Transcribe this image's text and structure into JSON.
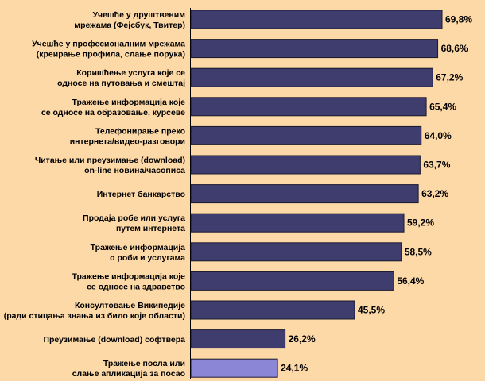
{
  "chart_data": {
    "type": "bar",
    "orientation": "horizontal",
    "title": "",
    "xlabel": "",
    "ylabel": "",
    "xlim": [
      0,
      100
    ],
    "grid": false,
    "legend": "none",
    "categories": [
      [
        "Учешће у друштвеним",
        "мрежама (Фејсбук, Твитер)"
      ],
      [
        "Учешће у професионалним мрежама",
        "(креирање профила, слање порука)"
      ],
      [
        "Коришћење услуга које се",
        "односе на путовања и смештај"
      ],
      [
        "Тражење информација које",
        "се односе на образовање, курсеве"
      ],
      [
        "Телефонирање преко",
        "интернета/видео-разговори"
      ],
      [
        "Читање или преузимање (download)",
        "on-line новина/часописа"
      ],
      [
        "Интернет банкарство"
      ],
      [
        "Продаја робе или услуга",
        "путем интернета"
      ],
      [
        "Тражење информација",
        "о роби и услугама"
      ],
      [
        "Тражење информација које",
        "се односе на здравство"
      ],
      [
        "Консултовање Википедије",
        "(ради стицања знања из било које области)"
      ],
      [
        "Преузимање (download) софтвера"
      ],
      [
        "Тражење посла или",
        "слање апликација за посао"
      ]
    ],
    "values": [
      69.8,
      68.6,
      67.2,
      65.4,
      64.0,
      63.7,
      63.2,
      59.2,
      58.5,
      56.4,
      45.5,
      26.2,
      24.1
    ],
    "value_labels": [
      "69,8%",
      "68,6%",
      "67,2%",
      "65,4%",
      "64,0%",
      "63,7%",
      "63,2%",
      "59,2%",
      "58,5%",
      "56,4%",
      "45,5%",
      "26,2%",
      "24,1%"
    ],
    "colors": {
      "background": "#fdd9a8",
      "bar": "#3f3d6e",
      "bar_highlight": "#8c86d6",
      "bar_stroke": "#1a1a2e",
      "axis": "#000000"
    },
    "highlight_index": 12
  }
}
